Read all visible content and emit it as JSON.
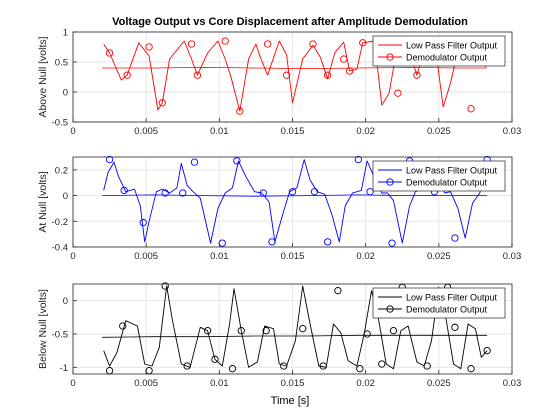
{
  "figure": {
    "title": "Voltage Output vs Core Displacement after Amplitude Demodulation",
    "xlabel": "Time [s]"
  },
  "chart_data": [
    {
      "type": "line",
      "title": "Voltage Output vs Core Displacement after Amplitude Demodulation",
      "xlabel": "",
      "ylabel": "Above Null [volts]",
      "xlim": [
        0,
        0.03
      ],
      "ylim": [
        -0.5,
        1
      ],
      "xticks": [
        "0",
        "0.005",
        "0.01",
        "0.015",
        "0.02",
        "0.025",
        "0.03"
      ],
      "yticks": [
        "-0.5",
        "0",
        "0.5",
        "1"
      ],
      "grid": true,
      "legend_position": "top-right",
      "color": "#ff0000",
      "series": [
        {
          "name": "Low Pass Filter Output",
          "marker": "none",
          "x": [
            0.002,
            0.0055,
            0.009,
            0.0125,
            0.016,
            0.0195,
            0.023,
            0.0265,
            0.0283
          ],
          "y": [
            0.4,
            0.4,
            0.41,
            0.4,
            0.39,
            0.4,
            0.41,
            0.4,
            0.4
          ]
        },
        {
          "name": "Demodulator Output",
          "marker": "circle",
          "x": [
            0.0021,
            0.0025,
            0.0033,
            0.0037,
            0.0045,
            0.0052,
            0.0058,
            0.0061,
            0.0066,
            0.0076,
            0.0081,
            0.0085,
            0.0092,
            0.0099,
            0.0104,
            0.0108,
            0.0114,
            0.012,
            0.0125,
            0.0128,
            0.0133,
            0.0141,
            0.0146,
            0.015,
            0.0157,
            0.0164,
            0.0169,
            0.0174,
            0.0179,
            0.0185,
            0.0189,
            0.0194,
            0.0198,
            0.0206,
            0.0211,
            0.0216,
            0.0222,
            0.0227,
            0.0232,
            0.0235,
            0.0241,
            0.0248,
            0.0253,
            0.0258,
            0.0264,
            0.0272,
            0.0277,
            0.0282
          ],
          "y": [
            0.8,
            0.65,
            0.2,
            0.28,
            0.82,
            0.6,
            -0.3,
            -0.18,
            0.55,
            0.85,
            0.55,
            0.28,
            0.65,
            0.85,
            0.55,
            0.25,
            -0.32,
            0.55,
            0.8,
            0.58,
            0.28,
            0.85,
            0.62,
            -0.18,
            0.55,
            0.78,
            0.58,
            0.22,
            0.66,
            0.83,
            0.35,
            0.38,
            0.82,
            0.85,
            -0.22,
            -0.02,
            0.82,
            0.78,
            0.52,
            0.28,
            0.8,
            0.68,
            -0.25,
            0.15,
            0.8,
            0.7,
            0.55,
            0.42
          ],
          "marker_x": [
            0.0025,
            0.0037,
            0.0052,
            0.0061,
            0.0081,
            0.0085,
            0.0104,
            0.0114,
            0.0133,
            0.0146,
            0.0164,
            0.0174,
            0.0185,
            0.0189,
            0.0198,
            0.0216,
            0.0222,
            0.0232,
            0.0235,
            0.0253,
            0.0272
          ],
          "marker_y": [
            0.65,
            0.28,
            0.75,
            -0.18,
            0.8,
            0.28,
            0.85,
            -0.32,
            0.8,
            0.28,
            0.8,
            0.28,
            0.55,
            0.35,
            0.82,
            0.82,
            -0.02,
            0.52,
            0.28,
            0.8,
            -0.28
          ]
        }
      ]
    },
    {
      "type": "line",
      "title": "",
      "xlabel": "",
      "ylabel": "At Null [volts]",
      "xlim": [
        0,
        0.03
      ],
      "ylim": [
        -0.4,
        0.3
      ],
      "xticks": [
        "0",
        "0.005",
        "0.01",
        "0.015",
        "0.02",
        "0.025",
        "0.03"
      ],
      "yticks": [
        "-0.4",
        "-0.2",
        "0",
        "0.2"
      ],
      "grid": true,
      "legend_position": "top-right",
      "color": "#0000ff",
      "series": [
        {
          "name": "Low Pass Filter Output",
          "marker": "none",
          "x": [
            0.002,
            0.0055,
            0.009,
            0.0125,
            0.016,
            0.0195,
            0.023,
            0.0265,
            0.0283
          ],
          "y": [
            0.0,
            0.005,
            0.0,
            -0.005,
            0.0,
            0.005,
            0.0,
            0.0,
            0.0
          ]
        },
        {
          "name": "Demodulator Output",
          "marker": "circle",
          "x": [
            0.0021,
            0.0024,
            0.0028,
            0.0031,
            0.0036,
            0.0042,
            0.0046,
            0.0049,
            0.0052,
            0.0057,
            0.0061,
            0.0066,
            0.0071,
            0.0074,
            0.0078,
            0.0082,
            0.0087,
            0.0094,
            0.0099,
            0.0104,
            0.0109,
            0.0113,
            0.0118,
            0.0124,
            0.0129,
            0.0134,
            0.0138,
            0.0144,
            0.0148,
            0.0153,
            0.0158,
            0.0162,
            0.0167,
            0.0172,
            0.0177,
            0.0182,
            0.0186,
            0.0191,
            0.0197,
            0.0201,
            0.0206,
            0.0211,
            0.0215,
            0.0219,
            0.0225,
            0.023,
            0.0234,
            0.0239,
            0.0245,
            0.025,
            0.0254,
            0.0258,
            0.0263,
            0.0268,
            0.0273,
            0.0278,
            0.0283
          ],
          "y": [
            0.04,
            0.18,
            0.26,
            0.15,
            0.03,
            0.05,
            -0.08,
            -0.36,
            -0.2,
            0.03,
            0.05,
            0.02,
            0.06,
            0.25,
            0.08,
            0.03,
            -0.02,
            -0.37,
            -0.1,
            0.02,
            0.06,
            0.27,
            0.15,
            0.03,
            0.02,
            -0.05,
            -0.36,
            -0.12,
            0.03,
            0.06,
            0.28,
            0.12,
            0.03,
            0.01,
            -0.15,
            -0.36,
            -0.08,
            0.02,
            0.04,
            0.27,
            0.14,
            0.02,
            0.02,
            -0.04,
            -0.37,
            -0.08,
            0.03,
            0.05,
            0.26,
            0.13,
            0.02,
            0.03,
            -0.1,
            -0.33,
            -0.06,
            0.02,
            0.27
          ],
          "marker_x": [
            0.0025,
            0.0035,
            0.0048,
            0.0063,
            0.0075,
            0.0083,
            0.0102,
            0.0112,
            0.013,
            0.0136,
            0.015,
            0.0165,
            0.0174,
            0.0195,
            0.0203,
            0.0218,
            0.023,
            0.0247,
            0.0261,
            0.0283
          ],
          "marker_y": [
            0.28,
            0.04,
            -0.21,
            0.02,
            0.02,
            0.26,
            -0.37,
            0.27,
            0.02,
            -0.36,
            0.03,
            0.03,
            -0.36,
            0.28,
            0.03,
            -0.37,
            0.27,
            0.03,
            -0.33,
            0.28
          ]
        }
      ]
    },
    {
      "type": "line",
      "title": "",
      "xlabel": "Time [s]",
      "ylabel": "Below Null [volts]",
      "xlim": [
        0,
        0.03
      ],
      "ylim": [
        -1.1,
        0.25
      ],
      "xticks": [
        "0",
        "0.005",
        "0.01",
        "0.015",
        "0.02",
        "0.025",
        "0.03"
      ],
      "yticks": [
        "-1",
        "-0.5",
        "0"
      ],
      "grid": true,
      "legend_position": "top-right",
      "color": "#000000",
      "series": [
        {
          "name": "Low Pass Filter Output",
          "marker": "none",
          "x": [
            0.002,
            0.0055,
            0.009,
            0.0125,
            0.016,
            0.0195,
            0.023,
            0.0265,
            0.0283
          ],
          "y": [
            -0.55,
            -0.54,
            -0.54,
            -0.53,
            -0.53,
            -0.52,
            -0.52,
            -0.52,
            -0.52
          ]
        },
        {
          "name": "Demodulator Output",
          "marker": "circle",
          "x": [
            0.0021,
            0.0025,
            0.003,
            0.0036,
            0.0044,
            0.0049,
            0.0054,
            0.0059,
            0.0064,
            0.0068,
            0.0074,
            0.008,
            0.0087,
            0.0092,
            0.0097,
            0.0102,
            0.0107,
            0.011,
            0.0115,
            0.012,
            0.0126,
            0.0131,
            0.0137,
            0.0141,
            0.0146,
            0.0152,
            0.0157,
            0.0162,
            0.0168,
            0.0173,
            0.0178,
            0.0183,
            0.0188,
            0.0194,
            0.0199,
            0.0204,
            0.0209,
            0.0214,
            0.0219,
            0.0224,
            0.0229,
            0.0235,
            0.024,
            0.0245,
            0.025,
            0.0255,
            0.026,
            0.0265,
            0.027,
            0.0275,
            0.0279,
            0.0283
          ],
          "y": [
            -0.75,
            -0.98,
            -0.78,
            -0.3,
            -0.38,
            -0.95,
            -0.98,
            -0.7,
            0.22,
            -0.3,
            -0.95,
            -1.0,
            -0.4,
            -0.45,
            -0.88,
            -0.98,
            -0.35,
            0.18,
            -0.45,
            -1.0,
            -0.92,
            -0.38,
            -0.42,
            -0.95,
            -0.98,
            -0.6,
            0.22,
            -0.35,
            -0.98,
            -1.0,
            -0.35,
            -0.48,
            -0.9,
            -0.98,
            -0.5,
            0.15,
            -0.3,
            -0.95,
            -1.02,
            -0.45,
            -0.38,
            -0.92,
            -0.98,
            -0.6,
            0.2,
            -0.28,
            -0.95,
            -1.02,
            -0.35,
            -0.42,
            -0.85,
            -0.75
          ],
          "marker_x": [
            0.0025,
            0.0034,
            0.0052,
            0.0063,
            0.0078,
            0.0092,
            0.0097,
            0.0109,
            0.0115,
            0.0132,
            0.0144,
            0.0157,
            0.0171,
            0.0181,
            0.0196,
            0.0201,
            0.0211,
            0.0219,
            0.0225,
            0.0242,
            0.0256,
            0.0261,
            0.0272,
            0.0283
          ],
          "marker_y": [
            -1.05,
            -0.38,
            -1.05,
            0.22,
            -0.98,
            -0.45,
            -0.88,
            -1.02,
            -0.45,
            -0.45,
            -0.98,
            -0.42,
            -0.98,
            0.15,
            -1.02,
            -0.5,
            -0.95,
            -0.45,
            0.2,
            -0.98,
            0.2,
            -0.4,
            -1.02,
            -0.75
          ]
        }
      ]
    }
  ]
}
